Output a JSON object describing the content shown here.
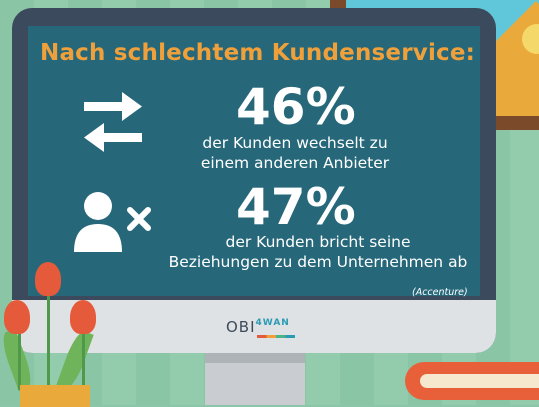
{
  "headline": "Nach schlechtem Kundenservice:",
  "stats": [
    {
      "icon": "swap-arrows-icon",
      "number": "46%",
      "line1": "der Kunden wechselt zu",
      "line2": "einem anderen Anbieter"
    },
    {
      "icon": "remove-user-icon",
      "number": "47%",
      "line1": "der Kunden bricht seine",
      "line2": "Beziehungen zu dem Unternehmen ab"
    }
  ],
  "source": "(Accenture)",
  "logo": {
    "main": "OBI",
    "accent": "4WAN"
  },
  "colors": {
    "headline": "#f0a03a",
    "screen": "#26687a",
    "monitor_frame": "#3b4a5c",
    "wall": "#8cc6a8"
  }
}
